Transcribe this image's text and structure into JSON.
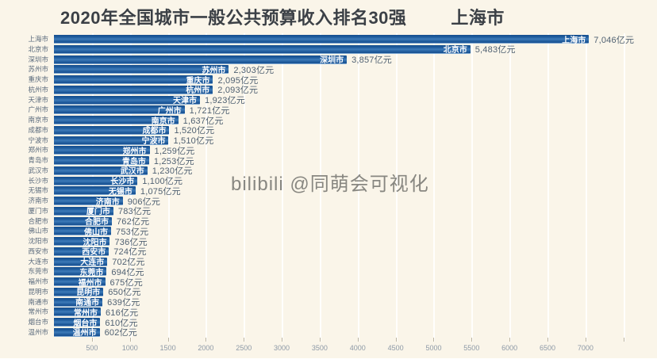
{
  "title": {
    "main": "2020年全国城市一般公共预算收入排名30强",
    "current_city": "上海市"
  },
  "watermark": "bilibili @同萌会可视化",
  "colors": {
    "background": "#faf5e9",
    "bar_blue": "#1f5c9e",
    "bar_light_blue": "#3d7ab8",
    "title_text": "#3b4046",
    "value_text": "#506172",
    "axis_text": "#8d99a6",
    "grid": "#ffffff"
  },
  "chart_data": {
    "type": "bar",
    "orientation": "horizontal",
    "title": "2020年全国城市一般公共预算收入排名30强",
    "subtitle_current_item": "上海市",
    "unit": "亿元",
    "xlim": [
      0,
      7900
    ],
    "x_ticks": [
      500,
      1000,
      1500,
      2000,
      2500,
      3000,
      3500,
      4000,
      4500,
      5000,
      5500,
      6000,
      6500,
      7000
    ],
    "grid": "vertical",
    "legend_position": "none",
    "categories": [
      "上海市",
      "北京市",
      "深圳市",
      "苏州市",
      "重庆市",
      "杭州市",
      "天津市",
      "广州市",
      "南京市",
      "成都市",
      "宁波市",
      "郑州市",
      "青岛市",
      "武汉市",
      "长沙市",
      "无锡市",
      "济南市",
      "厦门市",
      "合肥市",
      "佛山市",
      "沈阳市",
      "西安市",
      "大连市",
      "东莞市",
      "福州市",
      "昆明市",
      "南通市",
      "常州市",
      "烟台市",
      "温州市"
    ],
    "values": [
      7046,
      5483,
      3857,
      2303,
      2095,
      2093,
      1923,
      1721,
      1637,
      1520,
      1510,
      1259,
      1253,
      1230,
      1100,
      1075,
      906,
      783,
      762,
      753,
      736,
      724,
      702,
      694,
      675,
      650,
      639,
      616,
      610,
      602
    ],
    "value_labels": [
      "7,046亿元",
      "5,483亿元",
      "3,857亿元",
      "2,303亿元",
      "2,095亿元",
      "2,093亿元",
      "1,923亿元",
      "1,721亿元",
      "1,637亿元",
      "1,520亿元",
      "1,510亿元",
      "1,259亿元",
      "1,253亿元",
      "1,230亿元",
      "1,100亿元",
      "1,075亿元",
      "906亿元",
      "783亿元",
      "762亿元",
      "753亿元",
      "736亿元",
      "724亿元",
      "702亿元",
      "694亿元",
      "675亿元",
      "650亿元",
      "639亿元",
      "616亿元",
      "610亿元",
      "602亿元"
    ]
  }
}
